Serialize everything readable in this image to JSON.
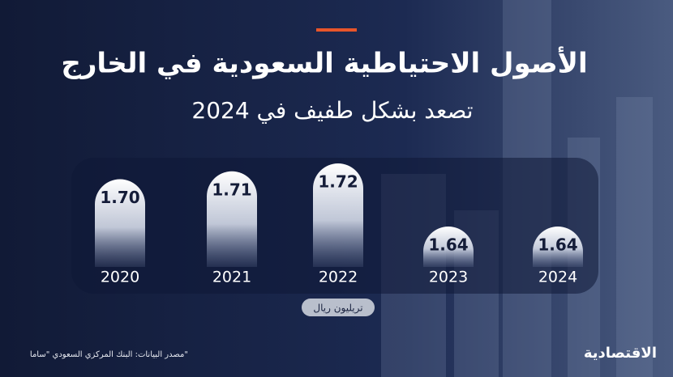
{
  "chart_data": {
    "type": "bar",
    "title": "الأصول الاحتياطية السعودية في الخارج",
    "subtitle": "تصعد بشكل طفيف في 2024",
    "categories": [
      "2020",
      "2021",
      "2022",
      "2023",
      "2024"
    ],
    "values": [
      1.7,
      1.71,
      1.72,
      1.64,
      1.64
    ],
    "value_labels": [
      "1.70",
      "1.71",
      "1.72",
      "1.64",
      "1.64"
    ],
    "unit_label": "تريليون ريال",
    "source": "مصدر البيانات: البنك المركزي السعودي \"ساما\"",
    "logo": "الاقتصادية",
    "color": "#ffffff"
  }
}
